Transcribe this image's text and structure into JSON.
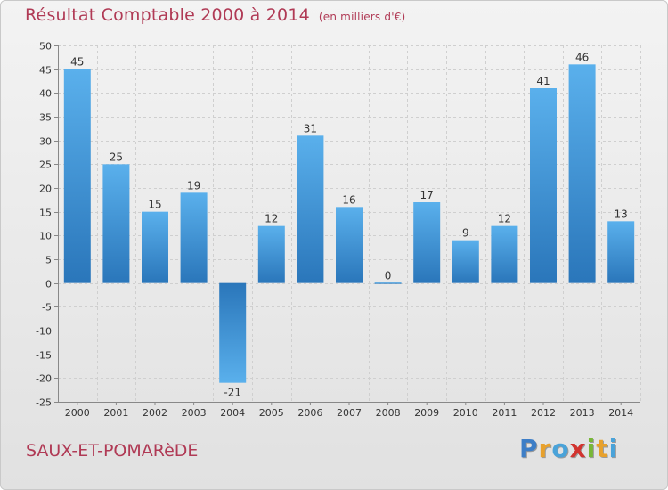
{
  "chart_data": {
    "type": "bar",
    "title": "Résultat Comptable 2000 à 2014",
    "unit_note": "(en milliers d'€)",
    "categories": [
      "2000",
      "2001",
      "2002",
      "2003",
      "2004",
      "2005",
      "2006",
      "2007",
      "2008",
      "2009",
      "2010",
      "2011",
      "2012",
      "2013",
      "2014"
    ],
    "values": [
      45,
      25,
      15,
      19,
      -21,
      12,
      31,
      16,
      0,
      17,
      9,
      12,
      41,
      46,
      13
    ],
    "ylim": [
      -25,
      50
    ],
    "yticks": [
      50,
      45,
      40,
      35,
      30,
      25,
      20,
      15,
      10,
      5,
      0,
      -5,
      -10,
      -15,
      -20,
      -25
    ],
    "xlabel": "",
    "ylabel": "",
    "grid": true,
    "bar_color": "#3a8fd6"
  },
  "footer": {
    "commune": "SAUX-ET-POMARèDE",
    "logo_letters": [
      {
        "ch": "P",
        "color": "#3d7ec7"
      },
      {
        "ch": "r",
        "color": "#e8a12c"
      },
      {
        "ch": "o",
        "color": "#4aa3d9"
      },
      {
        "ch": "x",
        "color": "#d2342f"
      },
      {
        "ch": "i",
        "color": "#78b737"
      },
      {
        "ch": "t",
        "color": "#e8a12c"
      },
      {
        "ch": "i",
        "color": "#4aa3d9"
      }
    ]
  }
}
